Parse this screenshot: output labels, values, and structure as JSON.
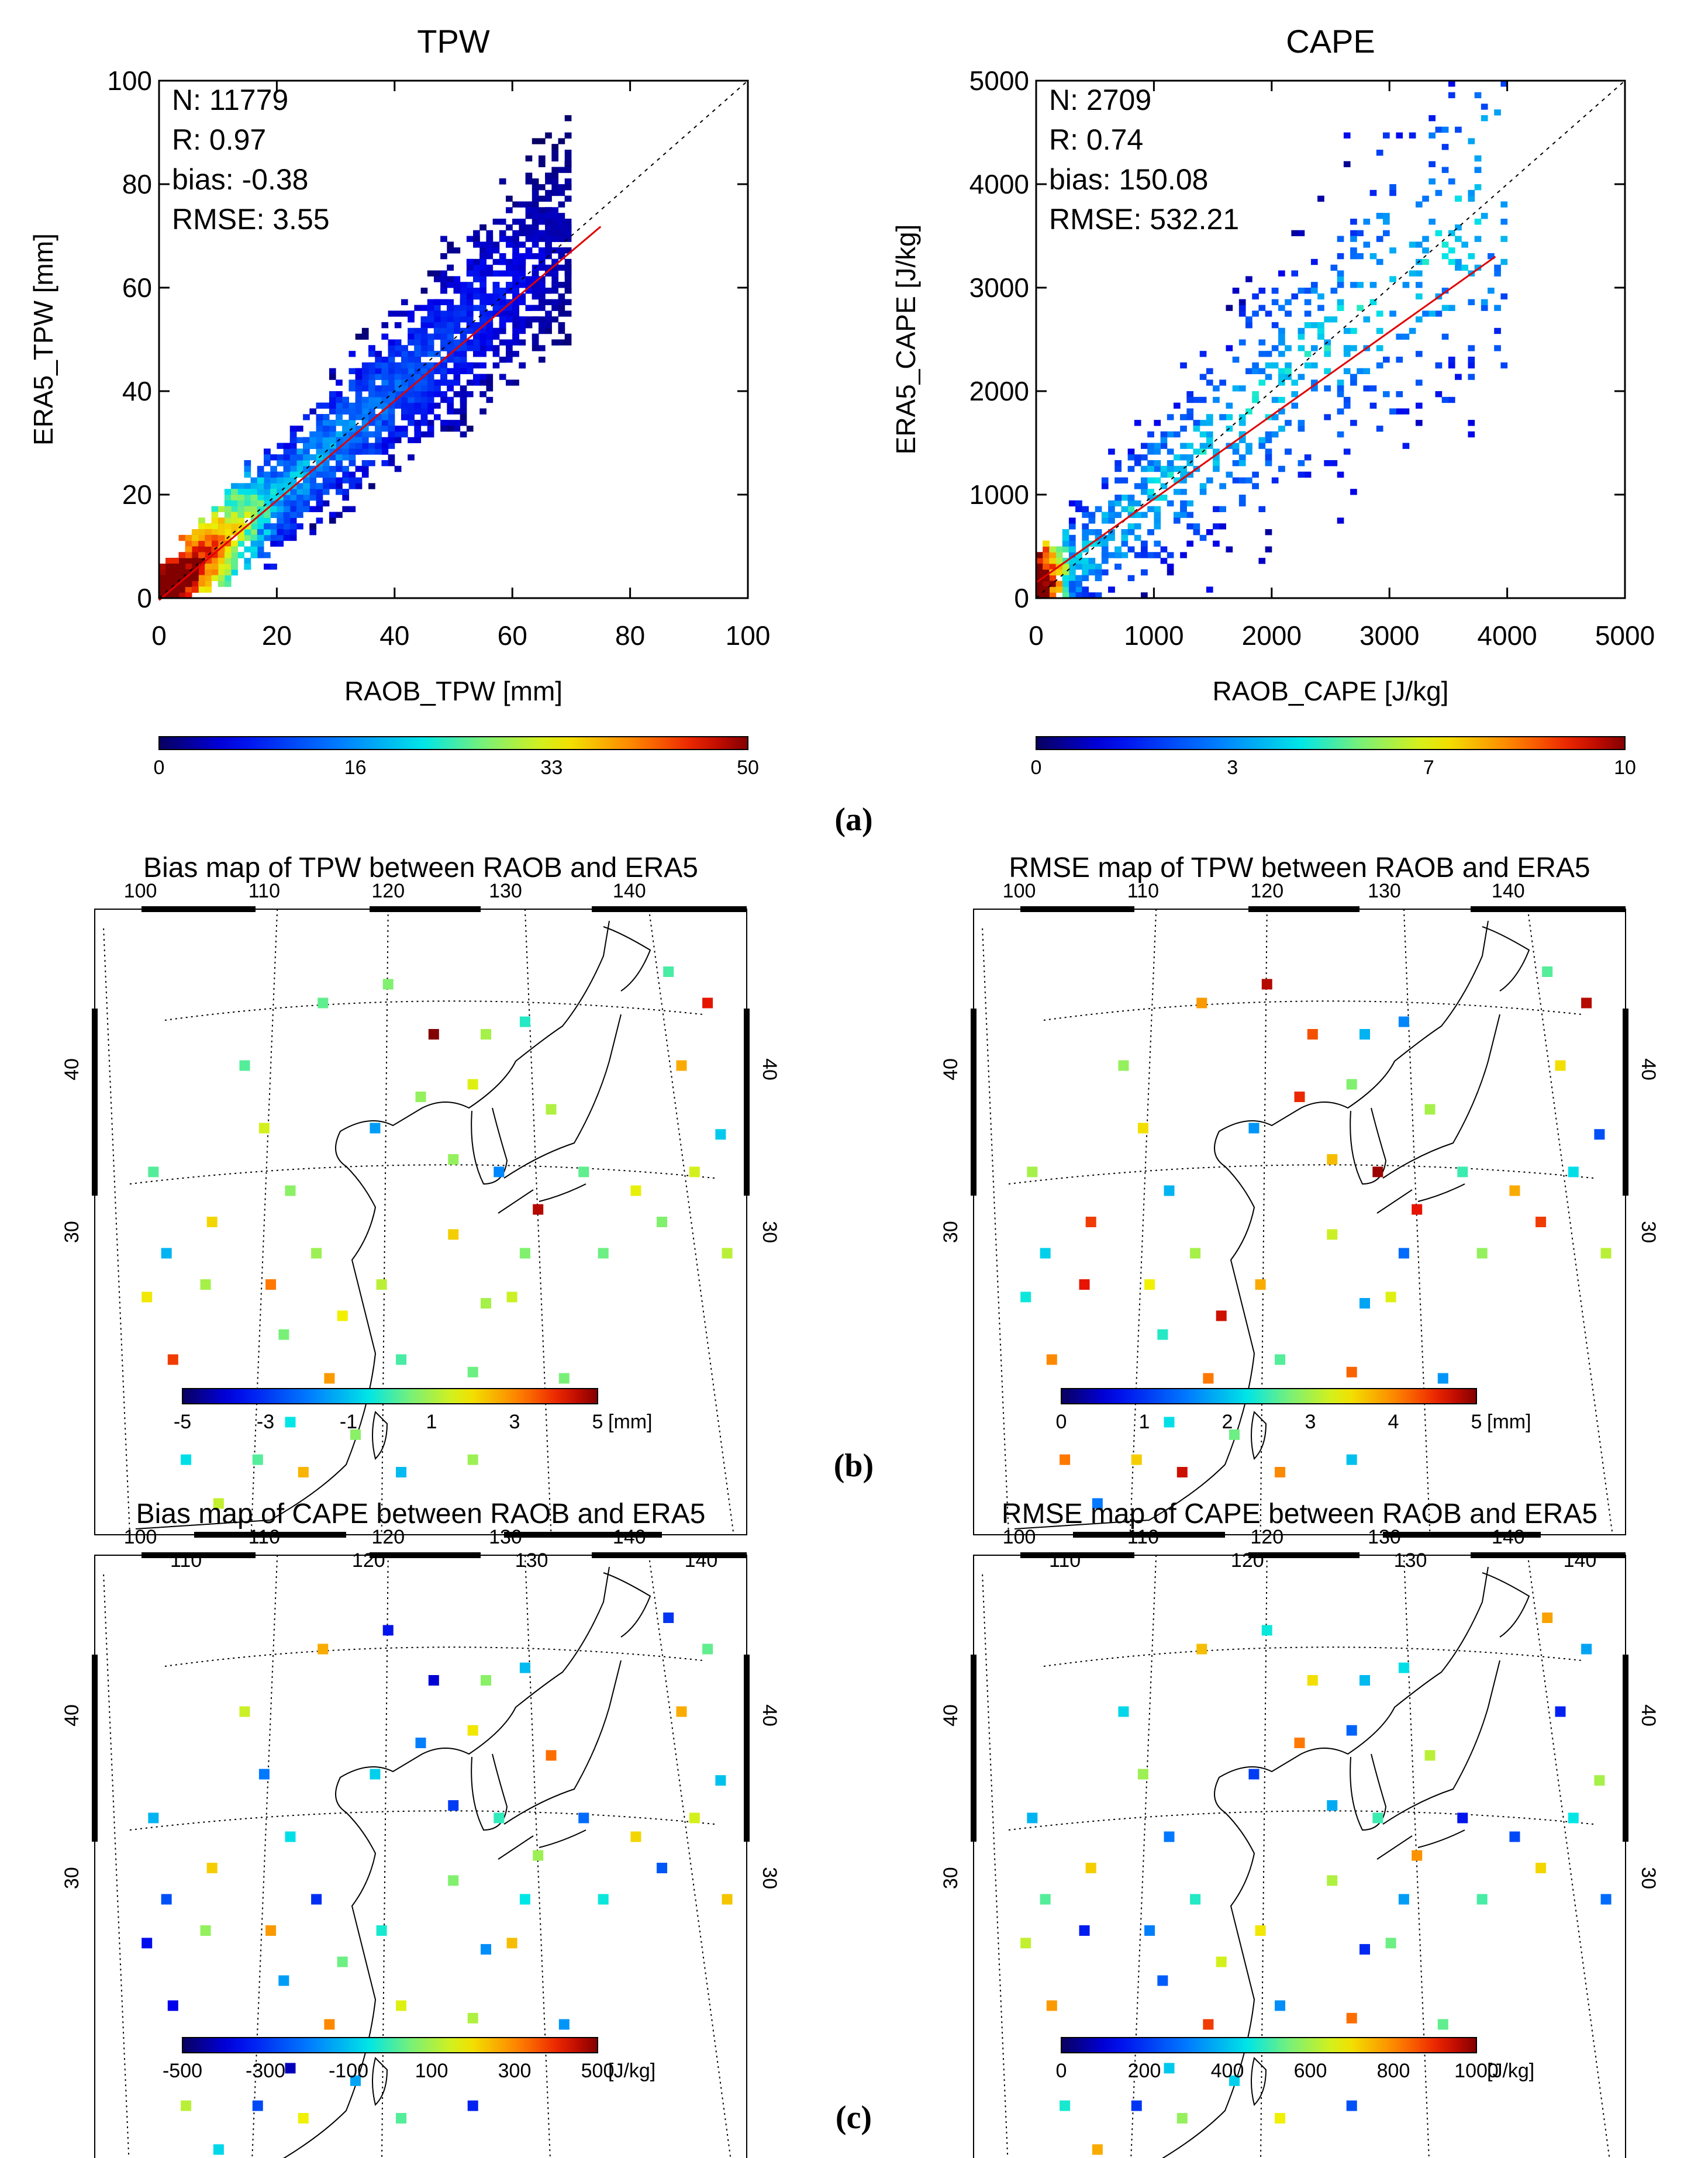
{
  "figure_labels": [
    "(a)",
    "(b)",
    "(c)"
  ],
  "chart_data": [
    {
      "id": "tpw_scatter",
      "type": "heatmap",
      "title": "TPW",
      "xlabel": "RAOB_TPW [mm]",
      "ylabel": "ERA5_TPW [mm]",
      "xlim": [
        0,
        100
      ],
      "ylim": [
        0,
        100
      ],
      "xticks": [
        0,
        20,
        40,
        60,
        80,
        100
      ],
      "yticks": [
        0,
        20,
        40,
        60,
        80,
        100
      ],
      "stats": [
        "N: 11779",
        "R: 0.97",
        "bias: -0.38",
        "RMSE:   3.55"
      ],
      "fit_line": {
        "x": [
          0,
          75
        ],
        "y": [
          -0.4,
          71.8
        ]
      },
      "density_band": {
        "x_range": [
          0,
          70
        ],
        "core_max_x": 20,
        "spread": 4
      },
      "colorbar": {
        "ticks": [
          "0",
          "16",
          "33",
          "50"
        ],
        "min": 0,
        "max": 50
      }
    },
    {
      "id": "cape_scatter",
      "type": "heatmap",
      "title": "CAPE",
      "xlabel": "RAOB_CAPE [J/kg]",
      "ylabel": "ERA5_CAPE [J/kg]",
      "xlim": [
        0,
        5000
      ],
      "ylim": [
        0,
        5000
      ],
      "xticks": [
        0,
        1000,
        2000,
        3000,
        4000,
        5000
      ],
      "yticks": [
        0,
        1000,
        2000,
        3000,
        4000,
        5000
      ],
      "stats": [
        "N: 2709",
        "R: 0.74",
        "bias: 150.08",
        "RMSE: 532.21"
      ],
      "fit_line": {
        "x": [
          0,
          3900
        ],
        "y": [
          150,
          3300
        ]
      },
      "density_band": {
        "x_range": [
          0,
          4000
        ],
        "core_max_x": 300,
        "spread": 500
      },
      "colorbar": {
        "ticks": [
          "0",
          "3",
          "7",
          "10"
        ],
        "min": 0,
        "max": 10
      }
    }
  ],
  "maps": [
    {
      "id": "bias_tpw",
      "title": "Bias map of TPW between RAOB and ERA5",
      "colorbar": {
        "ticks": [
          "-5",
          "-3",
          "-1",
          "1",
          "3",
          "5"
        ],
        "unit": "[mm]",
        "min": -5,
        "max": 5
      },
      "values": [
        0.2,
        -1.2,
        1.0,
        3.8,
        0.4,
        0.2,
        1.5,
        0.7,
        2.1,
        0.9,
        1.8,
        0.5,
        2.8,
        -0.5,
        1.2,
        0.1,
        0.9,
        -1.5,
        0.3,
        0.6,
        2.2,
        1.0,
        0.4,
        0.8,
        -1.8,
        1.6,
        5.0,
        -0.2,
        1.1,
        0.3,
        4.6,
        0.6,
        1.4,
        0.9,
        -1.1,
        0.7,
        2.5,
        0.2,
        1.3,
        -0.6,
        1.9,
        3.2,
        0.8,
        1.0,
        0.4,
        1.7,
        0.6,
        1.5,
        -0.9,
        2.6,
        0.1,
        4.2,
        0.5,
        1.2
      ]
    },
    {
      "id": "rmse_tpw",
      "title": "RMSE map of TPW between RAOB and ERA5",
      "colorbar": {
        "ticks": [
          "0",
          "1",
          "2",
          "3",
          "4",
          "5"
        ],
        "unit": "[mm]",
        "min": 0,
        "max": 5
      },
      "values": [
        3.0,
        2.1,
        4.6,
        4.0,
        3.1,
        2.9,
        3.5,
        1.9,
        4.4,
        3.0,
        4.7,
        2.4,
        4.1,
        2.2,
        3.8,
        2.6,
        4.5,
        1.7,
        3.9,
        4.8,
        3.2,
        1.8,
        4.2,
        3.7,
        4.9,
        2.8,
        4.3,
        1.6,
        3.0,
        2.5,
        4.6,
        1.4,
        3.3,
        2.0,
        4.0,
        2.7,
        4.7,
        3.6,
        1.5,
        4.1,
        2.3,
        3.4,
        4.5,
        1.9,
        2.9,
        3.8,
        4.4,
        2.2,
        1.2,
        3.5,
        2.6,
        4.8,
        1.7,
        3.1
      ]
    },
    {
      "id": "bias_cape",
      "title": "Bias map of CAPE between RAOB and ERA5",
      "colorbar": {
        "ticks": [
          "-500",
          "-300",
          "-100",
          "100",
          "300",
          "500"
        ],
        "unit": "[J/kg]",
        "min": -500,
        "max": 500
      },
      "values": [
        -120,
        -260,
        80,
        -380,
        -90,
        140,
        -200,
        -60,
        220,
        -310,
        40,
        -150,
        300,
        -420,
        -30,
        160,
        -240,
        -80,
        260,
        -350,
        60,
        -170,
        110,
        -290,
        -10,
        190,
        -400,
        -110,
        330,
        -220,
        90,
        -50,
        240,
        -330,
        20,
        -140,
        180,
        -270,
        -70,
        120,
        -360,
        280,
        -190,
        70,
        -40,
        210,
        -250,
        150,
        -100,
        260,
        -300,
        30,
        -160,
        230
      ]
    },
    {
      "id": "rmse_cape",
      "title": "RMSE map of CAPE between RAOB and ERA5",
      "colorbar": {
        "ticks": [
          "0",
          "200",
          "400",
          "600",
          "800",
          "1000"
        ],
        "unit": "[J/kg]",
        "min": 0,
        "max": 1000
      },
      "values": [
        380,
        520,
        160,
        780,
        640,
        430,
        590,
        300,
        720,
        480,
        650,
        260,
        880,
        410,
        690,
        330,
        560,
        210,
        740,
        460,
        610,
        180,
        830,
        370,
        500,
        270,
        700,
        440,
        620,
        150,
        790,
        350,
        540,
        240,
        680,
        420,
        580,
        200,
        760,
        470,
        630,
        310,
        820,
        390,
        510,
        230,
        710,
        450,
        600,
        170,
        770,
        360,
        530,
        280
      ]
    }
  ],
  "map_axes": {
    "top_lon": [
      "100",
      "110",
      "120",
      "130",
      "140"
    ],
    "bottom_lon": [
      "110",
      "120",
      "130",
      "140"
    ],
    "lat": [
      "40",
      "30"
    ]
  }
}
